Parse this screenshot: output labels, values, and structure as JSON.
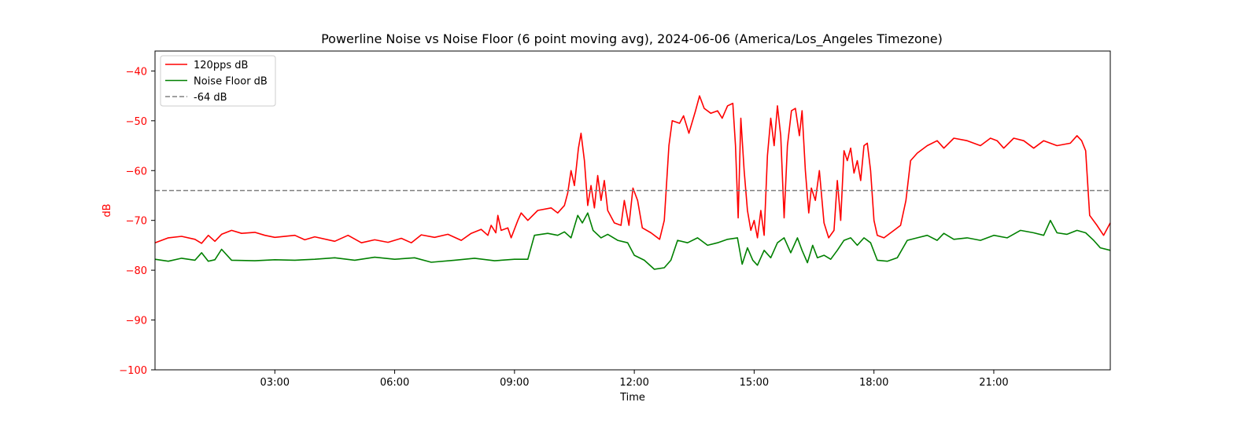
{
  "chart_data": {
    "type": "line",
    "title": "Powerline Noise vs Noise Floor (6 point moving avg), 2024-06-06 (America/Los_Angeles Timezone)",
    "xlabel": "Time",
    "ylabel": "dB",
    "ylabel_color": "#ff0000",
    "xlim": [
      "00:00",
      "23:55"
    ],
    "ylim": [
      -100,
      -36
    ],
    "xticks": [
      "03:00",
      "06:00",
      "09:00",
      "12:00",
      "15:00",
      "18:00",
      "21:00"
    ],
    "yticks": [
      "−40",
      "−50",
      "−60",
      "−70",
      "−80",
      "−90",
      "−100"
    ],
    "ytick_color": "#ff0000",
    "grid": false,
    "legend_position": "top-left",
    "series": [
      {
        "name": "120pps dB",
        "color": "#ff0000",
        "style": "solid",
        "points": [
          [
            "00:00",
            -74.5
          ],
          [
            "00:20",
            -73.5
          ],
          [
            "00:40",
            -73.2
          ],
          [
            "01:00",
            -73.8
          ],
          [
            "01:10",
            -74.6
          ],
          [
            "01:20",
            -73.0
          ],
          [
            "01:30",
            -74.2
          ],
          [
            "01:40",
            -72.8
          ],
          [
            "01:55",
            -72.0
          ],
          [
            "02:10",
            -72.6
          ],
          [
            "02:30",
            -72.4
          ],
          [
            "02:45",
            -73.0
          ],
          [
            "03:00",
            -73.4
          ],
          [
            "03:30",
            -73.0
          ],
          [
            "03:45",
            -73.9
          ],
          [
            "04:00",
            -73.3
          ],
          [
            "04:30",
            -74.2
          ],
          [
            "04:50",
            -73.0
          ],
          [
            "05:10",
            -74.5
          ],
          [
            "05:30",
            -73.9
          ],
          [
            "05:50",
            -74.4
          ],
          [
            "06:10",
            -73.6
          ],
          [
            "06:25",
            -74.5
          ],
          [
            "06:40",
            -72.9
          ],
          [
            "07:00",
            -73.4
          ],
          [
            "07:20",
            -72.8
          ],
          [
            "07:40",
            -74.0
          ],
          [
            "07:55",
            -72.6
          ],
          [
            "08:10",
            -71.8
          ],
          [
            "08:20",
            -73.0
          ],
          [
            "08:25",
            -71.0
          ],
          [
            "08:32",
            -72.5
          ],
          [
            "08:35",
            -69.0
          ],
          [
            "08:40",
            -72.0
          ],
          [
            "08:50",
            -71.5
          ],
          [
            "08:55",
            -73.5
          ],
          [
            "09:05",
            -70.0
          ],
          [
            "09:10",
            -68.5
          ],
          [
            "09:20",
            -70.0
          ],
          [
            "09:35",
            -68.0
          ],
          [
            "09:55",
            -67.5
          ],
          [
            "10:05",
            -68.5
          ],
          [
            "10:15",
            -67.0
          ],
          [
            "10:20",
            -64.5
          ],
          [
            "10:25",
            -60.0
          ],
          [
            "10:30",
            -63.0
          ],
          [
            "10:36",
            -55.5
          ],
          [
            "10:40",
            -52.5
          ],
          [
            "10:45",
            -58.0
          ],
          [
            "10:50",
            -67.0
          ],
          [
            "10:55",
            -63.0
          ],
          [
            "11:00",
            -67.5
          ],
          [
            "11:05",
            -61.0
          ],
          [
            "11:10",
            -66.0
          ],
          [
            "11:15",
            -62.0
          ],
          [
            "11:20",
            -68.0
          ],
          [
            "11:30",
            -70.5
          ],
          [
            "11:40",
            -71.0
          ],
          [
            "11:45",
            -66.0
          ],
          [
            "11:52",
            -71.0
          ],
          [
            "11:58",
            -63.5
          ],
          [
            "12:05",
            -66.0
          ],
          [
            "12:12",
            -71.5
          ],
          [
            "12:25",
            -72.5
          ],
          [
            "12:38",
            -73.8
          ],
          [
            "12:45",
            -70.0
          ],
          [
            "12:52",
            -55.0
          ],
          [
            "12:57",
            -50.0
          ],
          [
            "13:08",
            -50.5
          ],
          [
            "13:14",
            -49.0
          ],
          [
            "13:22",
            -52.5
          ],
          [
            "13:32",
            -48.0
          ],
          [
            "13:38",
            -45.0
          ],
          [
            "13:45",
            -47.5
          ],
          [
            "13:55",
            -48.5
          ],
          [
            "14:05",
            -48.0
          ],
          [
            "14:12",
            -49.5
          ],
          [
            "14:20",
            -47.0
          ],
          [
            "14:28",
            -46.5
          ],
          [
            "14:32",
            -55.0
          ],
          [
            "14:36",
            -69.5
          ],
          [
            "14:40",
            -49.5
          ],
          [
            "14:45",
            -60.0
          ],
          [
            "14:50",
            -68.0
          ],
          [
            "14:55",
            -72.0
          ],
          [
            "15:00",
            -70.0
          ],
          [
            "15:05",
            -73.5
          ],
          [
            "15:10",
            -68.0
          ],
          [
            "15:15",
            -73.0
          ],
          [
            "15:20",
            -57.0
          ],
          [
            "15:25",
            -49.5
          ],
          [
            "15:30",
            -55.0
          ],
          [
            "15:35",
            -47.0
          ],
          [
            "15:40",
            -53.0
          ],
          [
            "15:45",
            -69.5
          ],
          [
            "15:50",
            -55.0
          ],
          [
            "15:56",
            -48.0
          ],
          [
            "16:02",
            -47.5
          ],
          [
            "16:08",
            -53.0
          ],
          [
            "16:12",
            -48.0
          ],
          [
            "16:17",
            -60.0
          ],
          [
            "16:22",
            -68.5
          ],
          [
            "16:26",
            -63.5
          ],
          [
            "16:32",
            -66.0
          ],
          [
            "16:38",
            -60.0
          ],
          [
            "16:45",
            -70.5
          ],
          [
            "16:52",
            -73.5
          ],
          [
            "17:00",
            -72.0
          ],
          [
            "17:05",
            -62.0
          ],
          [
            "17:10",
            -70.0
          ],
          [
            "17:15",
            -56.0
          ],
          [
            "17:20",
            -58.0
          ],
          [
            "17:25",
            -55.5
          ],
          [
            "17:30",
            -60.5
          ],
          [
            "17:35",
            -58.0
          ],
          [
            "17:40",
            -62.0
          ],
          [
            "17:45",
            -55.0
          ],
          [
            "17:50",
            -54.5
          ],
          [
            "17:55",
            -60.0
          ],
          [
            "18:00",
            -70.0
          ],
          [
            "18:05",
            -73.0
          ],
          [
            "18:15",
            -73.5
          ],
          [
            "18:30",
            -72.0
          ],
          [
            "18:40",
            -71.0
          ],
          [
            "18:48",
            -66.0
          ],
          [
            "18:55",
            -58.0
          ],
          [
            "19:05",
            -56.5
          ],
          [
            "19:20",
            -55.0
          ],
          [
            "19:35",
            -54.0
          ],
          [
            "19:45",
            -55.5
          ],
          [
            "20:00",
            -53.5
          ],
          [
            "20:20",
            -54.0
          ],
          [
            "20:40",
            -55.0
          ],
          [
            "20:55",
            -53.5
          ],
          [
            "21:05",
            -54.0
          ],
          [
            "21:15",
            -55.5
          ],
          [
            "21:30",
            -53.5
          ],
          [
            "21:45",
            -54.0
          ],
          [
            "22:00",
            -55.5
          ],
          [
            "22:15",
            -54.0
          ],
          [
            "22:35",
            -55.0
          ],
          [
            "22:55",
            -54.5
          ],
          [
            "23:05",
            -53.0
          ],
          [
            "23:12",
            -54.0
          ],
          [
            "23:18",
            -56.0
          ],
          [
            "23:24",
            -69.0
          ],
          [
            "23:35",
            -71.0
          ],
          [
            "23:45",
            -73.0
          ],
          [
            "23:55",
            -70.5
          ]
        ]
      },
      {
        "name": "Noise Floor dB",
        "color": "#008000",
        "style": "solid",
        "points": [
          [
            "00:00",
            -77.8
          ],
          [
            "00:20",
            -78.2
          ],
          [
            "00:40",
            -77.6
          ],
          [
            "01:00",
            -78.0
          ],
          [
            "01:10",
            -76.5
          ],
          [
            "01:20",
            -78.2
          ],
          [
            "01:30",
            -77.9
          ],
          [
            "01:40",
            -75.8
          ],
          [
            "01:55",
            -78.0
          ],
          [
            "02:30",
            -78.1
          ],
          [
            "03:00",
            -77.9
          ],
          [
            "03:30",
            -78.0
          ],
          [
            "04:00",
            -77.8
          ],
          [
            "04:30",
            -77.5
          ],
          [
            "05:00",
            -78.0
          ],
          [
            "05:30",
            -77.4
          ],
          [
            "06:00",
            -77.8
          ],
          [
            "06:30",
            -77.5
          ],
          [
            "06:55",
            -78.4
          ],
          [
            "07:30",
            -78.0
          ],
          [
            "08:00",
            -77.6
          ],
          [
            "08:30",
            -78.1
          ],
          [
            "09:00",
            -77.8
          ],
          [
            "09:20",
            -77.8
          ],
          [
            "09:30",
            -73.0
          ],
          [
            "09:50",
            -72.6
          ],
          [
            "10:05",
            -73.0
          ],
          [
            "10:15",
            -72.3
          ],
          [
            "10:25",
            -73.5
          ],
          [
            "10:35",
            -69.0
          ],
          [
            "10:42",
            -70.5
          ],
          [
            "10:50",
            -68.5
          ],
          [
            "10:58",
            -72.0
          ],
          [
            "11:10",
            -73.5
          ],
          [
            "11:20",
            -72.8
          ],
          [
            "11:35",
            -74.0
          ],
          [
            "11:50",
            -74.5
          ],
          [
            "12:00",
            -77.0
          ],
          [
            "12:15",
            -78.0
          ],
          [
            "12:30",
            -79.8
          ],
          [
            "12:45",
            -79.5
          ],
          [
            "12:55",
            -78.0
          ],
          [
            "13:05",
            -74.0
          ],
          [
            "13:20",
            -74.5
          ],
          [
            "13:35",
            -73.5
          ],
          [
            "13:50",
            -75.0
          ],
          [
            "14:05",
            -74.5
          ],
          [
            "14:20",
            -73.8
          ],
          [
            "14:35",
            -73.5
          ],
          [
            "14:42",
            -78.8
          ],
          [
            "14:50",
            -75.5
          ],
          [
            "14:58",
            -78.0
          ],
          [
            "15:05",
            -79.0
          ],
          [
            "15:15",
            -76.0
          ],
          [
            "15:25",
            -77.5
          ],
          [
            "15:35",
            -74.5
          ],
          [
            "15:45",
            -73.5
          ],
          [
            "15:55",
            -76.5
          ],
          [
            "16:05",
            -73.5
          ],
          [
            "16:12",
            -76.0
          ],
          [
            "16:20",
            -78.5
          ],
          [
            "16:28",
            -75.0
          ],
          [
            "16:35",
            -77.5
          ],
          [
            "16:45",
            -77.0
          ],
          [
            "16:55",
            -77.8
          ],
          [
            "17:05",
            -76.0
          ],
          [
            "17:15",
            -74.0
          ],
          [
            "17:25",
            -73.5
          ],
          [
            "17:35",
            -75.0
          ],
          [
            "17:45",
            -73.5
          ],
          [
            "17:55",
            -74.5
          ],
          [
            "18:05",
            -78.0
          ],
          [
            "18:20",
            -78.2
          ],
          [
            "18:35",
            -77.5
          ],
          [
            "18:50",
            -74.0
          ],
          [
            "19:05",
            -73.5
          ],
          [
            "19:20",
            -73.0
          ],
          [
            "19:35",
            -74.0
          ],
          [
            "19:45",
            -72.6
          ],
          [
            "20:00",
            -73.8
          ],
          [
            "20:20",
            -73.5
          ],
          [
            "20:40",
            -74.0
          ],
          [
            "21:00",
            -73.0
          ],
          [
            "21:20",
            -73.5
          ],
          [
            "21:40",
            -72.0
          ],
          [
            "22:00",
            -72.5
          ],
          [
            "22:15",
            -73.0
          ],
          [
            "22:25",
            -70.0
          ],
          [
            "22:35",
            -72.5
          ],
          [
            "22:50",
            -72.8
          ],
          [
            "23:05",
            -72.0
          ],
          [
            "23:18",
            -72.5
          ],
          [
            "23:30",
            -74.0
          ],
          [
            "23:40",
            -75.5
          ],
          [
            "23:55",
            -76.0
          ]
        ]
      },
      {
        "name": "-64 dB",
        "color": "#808080",
        "style": "dashed",
        "y": -64
      }
    ]
  }
}
